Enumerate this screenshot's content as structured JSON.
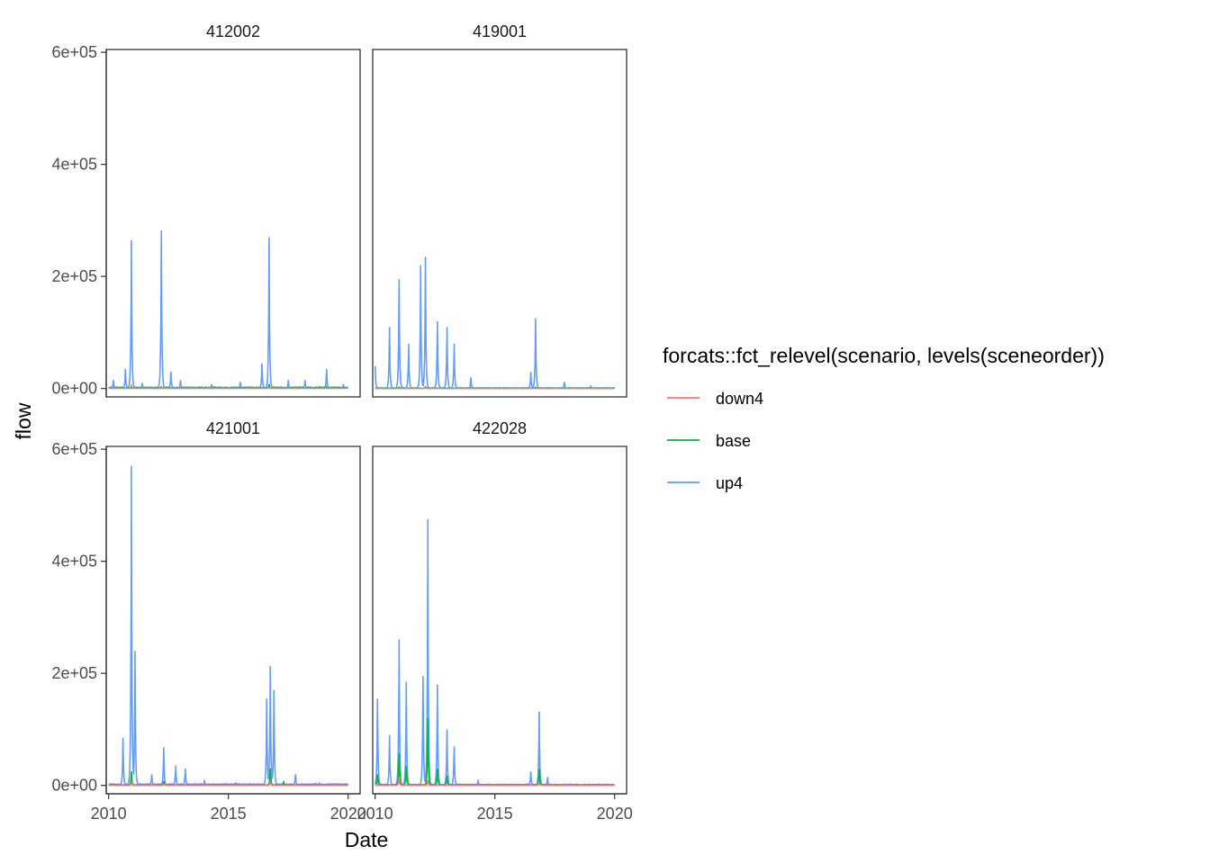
{
  "chart_data": {
    "type": "line",
    "title": "",
    "xlabel": "Date",
    "ylabel": "flow",
    "facet_layout": "2x2",
    "grid": false,
    "xlim": [
      2009.9,
      2020.5
    ],
    "ylim": [
      -15000,
      605000
    ],
    "x_ticks": [
      2010,
      2015,
      2020
    ],
    "x_tick_labels": [
      "2010",
      "2015",
      "2020"
    ],
    "y_ticks": [
      0,
      200000,
      400000,
      600000
    ],
    "y_tick_labels": [
      "0e+00",
      "2e+05",
      "4e+05",
      "6e+05"
    ],
    "legend": {
      "title": "forcats::fct_relevel(scenario, levels(sceneorder))",
      "placement": "right",
      "entries": [
        {
          "name": "down4",
          "color": "#F8766D"
        },
        {
          "name": "base",
          "color": "#00BA38"
        },
        {
          "name": "up4",
          "color": "#619CFF"
        }
      ]
    },
    "panels": [
      {
        "label": "412002",
        "series": [
          {
            "name": "up4",
            "color": "#619CFF",
            "base": 2000,
            "peaks": [
              [
                2010.2,
                15000
              ],
              [
                2010.7,
                35000
              ],
              [
                2010.95,
                265000
              ],
              [
                2011.4,
                10000
              ],
              [
                2012.2,
                282000
              ],
              [
                2012.6,
                30000
              ],
              [
                2013.0,
                15000
              ],
              [
                2014.3,
                8000
              ],
              [
                2015.5,
                12000
              ],
              [
                2016.4,
                45000
              ],
              [
                2016.7,
                270000
              ],
              [
                2017.5,
                15000
              ],
              [
                2018.2,
                15000
              ],
              [
                2019.1,
                35000
              ],
              [
                2019.8,
                8000
              ]
            ]
          },
          {
            "name": "base",
            "color": "#00BA38",
            "base": 800,
            "peaks": [
              [
                2010.95,
                4000
              ],
              [
                2012.2,
                4000
              ],
              [
                2016.7,
                8000
              ],
              [
                2019.1,
                2000
              ]
            ]
          },
          {
            "name": "down4",
            "color": "#F8766D",
            "base": 300,
            "peaks": [
              [
                2010.95,
                1500
              ],
              [
                2012.2,
                1500
              ],
              [
                2016.7,
                3000
              ]
            ]
          }
        ]
      },
      {
        "label": "419001",
        "series": [
          {
            "name": "up4",
            "color": "#619CFF",
            "base": 1000,
            "peaks": [
              [
                2010.0,
                40000
              ],
              [
                2010.6,
                110000
              ],
              [
                2011.0,
                195000
              ],
              [
                2011.4,
                80000
              ],
              [
                2011.9,
                220000
              ],
              [
                2012.1,
                235000
              ],
              [
                2012.6,
                120000
              ],
              [
                2013.0,
                110000
              ],
              [
                2013.3,
                80000
              ],
              [
                2014.0,
                20000
              ],
              [
                2016.5,
                30000
              ],
              [
                2016.7,
                125000
              ],
              [
                2017.9,
                12000
              ],
              [
                2019.0,
                5000
              ]
            ]
          },
          {
            "name": "base",
            "color": "#00BA38",
            "base": 500,
            "peaks": [
              [
                2011.0,
                3000
              ],
              [
                2012.1,
                4000
              ],
              [
                2016.7,
                3000
              ]
            ]
          },
          {
            "name": "down4",
            "color": "#F8766D",
            "base": 200,
            "peaks": [
              [
                2012.1,
                1500
              ]
            ]
          }
        ]
      },
      {
        "label": "421001",
        "series": [
          {
            "name": "up4",
            "color": "#619CFF",
            "base": 2000,
            "peaks": [
              [
                2010.6,
                85000
              ],
              [
                2010.95,
                570000
              ],
              [
                2011.1,
                240000
              ],
              [
                2011.8,
                20000
              ],
              [
                2012.3,
                68000
              ],
              [
                2012.8,
                35000
              ],
              [
                2013.2,
                30000
              ],
              [
                2014.0,
                10000
              ],
              [
                2015.3,
                5000
              ],
              [
                2016.6,
                155000
              ],
              [
                2016.75,
                213000
              ],
              [
                2016.9,
                170000
              ],
              [
                2017.8,
                20000
              ],
              [
                2018.8,
                5000
              ]
            ]
          },
          {
            "name": "base",
            "color": "#00BA38",
            "base": 800,
            "peaks": [
              [
                2010.95,
                25000
              ],
              [
                2012.3,
                8000
              ],
              [
                2016.75,
                30000
              ],
              [
                2017.3,
                8000
              ]
            ]
          },
          {
            "name": "down4",
            "color": "#F8766D",
            "base": 300,
            "peaks": [
              [
                2010.95,
                6000
              ],
              [
                2012.3,
                3000
              ],
              [
                2016.75,
                7000
              ]
            ]
          }
        ]
      },
      {
        "label": "422028",
        "series": [
          {
            "name": "up4",
            "color": "#619CFF",
            "base": 1500,
            "peaks": [
              [
                2010.1,
                155000
              ],
              [
                2010.6,
                90000
              ],
              [
                2011.0,
                260000
              ],
              [
                2011.3,
                185000
              ],
              [
                2012.0,
                195000
              ],
              [
                2012.2,
                475000
              ],
              [
                2012.6,
                180000
              ],
              [
                2013.0,
                100000
              ],
              [
                2013.3,
                70000
              ],
              [
                2014.3,
                10000
              ],
              [
                2016.5,
                25000
              ],
              [
                2016.85,
                132000
              ],
              [
                2017.2,
                15000
              ]
            ]
          },
          {
            "name": "base",
            "color": "#00BA38",
            "base": 1000,
            "peaks": [
              [
                2010.1,
                20000
              ],
              [
                2011.0,
                58000
              ],
              [
                2011.3,
                35000
              ],
              [
                2012.2,
                120000
              ],
              [
                2012.6,
                30000
              ],
              [
                2013.0,
                18000
              ],
              [
                2016.85,
                30000
              ]
            ]
          },
          {
            "name": "down4",
            "color": "#F8766D",
            "base": 400,
            "peaks": [
              [
                2011.0,
                15000
              ],
              [
                2012.2,
                10000
              ],
              [
                2016.85,
                5000
              ]
            ]
          }
        ]
      }
    ]
  }
}
